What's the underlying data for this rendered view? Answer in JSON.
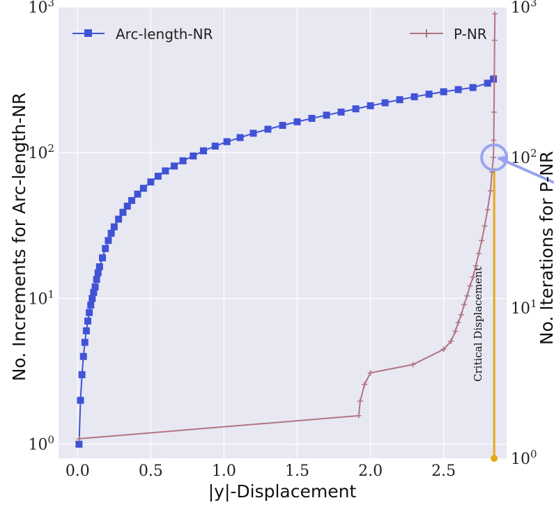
{
  "chart_data": {
    "type": "line",
    "xlabel": "|y|-Displacement",
    "ylabel_left": "No. Increments for Arc-length-NR",
    "ylabel_right": "No. Iterations for P-NR",
    "xlim": [
      -0.13,
      2.93
    ],
    "ylim_left": [
      0.8,
      1000
    ],
    "ylim_right": [
      1,
      1000
    ],
    "yscale": "log",
    "grid": true,
    "x_ticks": [
      "0.0",
      "0.5",
      "1.0",
      "1.5",
      "2.0",
      "2.5"
    ],
    "x_tick_values": [
      0,
      0.5,
      1.0,
      1.5,
      2.0,
      2.5
    ],
    "left_ticks": [
      {
        "base": "10",
        "exp": "0",
        "value": 1
      },
      {
        "base": "10",
        "exp": "1",
        "value": 10
      },
      {
        "base": "10",
        "exp": "2",
        "value": 100
      },
      {
        "base": "10",
        "exp": "3",
        "value": 1000
      }
    ],
    "right_ticks": [
      {
        "base": "10",
        "exp": "0",
        "value": 1
      },
      {
        "base": "10",
        "exp": "1",
        "value": 10
      },
      {
        "base": "10",
        "exp": "2",
        "value": 100
      },
      {
        "base": "10",
        "exp": "3",
        "value": 1000
      }
    ],
    "series": [
      {
        "name": "Arc-length-NR",
        "axis": "left",
        "color": "#4052d6",
        "marker": "square",
        "x": [
          0.01,
          0.02,
          0.03,
          0.04,
          0.05,
          0.06,
          0.07,
          0.08,
          0.09,
          0.1,
          0.11,
          0.12,
          0.13,
          0.14,
          0.15,
          0.17,
          0.19,
          0.21,
          0.23,
          0.25,
          0.28,
          0.31,
          0.34,
          0.37,
          0.41,
          0.45,
          0.5,
          0.55,
          0.6,
          0.66,
          0.72,
          0.79,
          0.86,
          0.94,
          1.02,
          1.11,
          1.2,
          1.3,
          1.4,
          1.5,
          1.6,
          1.7,
          1.8,
          1.9,
          2.0,
          2.1,
          2.2,
          2.3,
          2.4,
          2.5,
          2.6,
          2.7,
          2.8,
          2.84
        ],
        "y": [
          1,
          2,
          3,
          4,
          5,
          6,
          7,
          8,
          9,
          10,
          11,
          12,
          13.5,
          15,
          16.5,
          19,
          22,
          25,
          28,
          31,
          35,
          39,
          43,
          47,
          52,
          57,
          63,
          69,
          75,
          81,
          88,
          95,
          103,
          111,
          119,
          127,
          136,
          145,
          154,
          163,
          172,
          181,
          190,
          200,
          210,
          220,
          231,
          242,
          252,
          262,
          271,
          280,
          300,
          320
        ]
      },
      {
        "name": "P-NR",
        "axis": "right",
        "color": "#b07482",
        "marker": "plus",
        "x": [
          0.01,
          1.92,
          1.93,
          1.96,
          2.0,
          2.29,
          2.5,
          2.55,
          2.58,
          2.6,
          2.62,
          2.64,
          2.66,
          2.68,
          2.7,
          2.72,
          2.74,
          2.76,
          2.78,
          2.8,
          2.82,
          2.83,
          2.84,
          2.842,
          2.844,
          2.846,
          2.848,
          2.85
        ],
        "y": [
          1.35,
          1.92,
          2.4,
          3.1,
          3.7,
          4.2,
          5.3,
          6.0,
          7.0,
          8.0,
          9.0,
          10.5,
          12,
          14,
          16,
          19,
          23,
          28,
          35,
          45,
          60,
          80,
          100,
          130,
          200,
          350,
          600,
          900
        ]
      }
    ],
    "critical_displacement": {
      "x": 2.845,
      "y_bottom": 1,
      "y_top": 85,
      "color": "#e6a817",
      "label": "Critical Displacement"
    },
    "highlight_circle": {
      "x": 2.845,
      "y": 100,
      "color": "#9aa3f0"
    },
    "legend_left": "top-left",
    "legend_right": "top-right"
  }
}
